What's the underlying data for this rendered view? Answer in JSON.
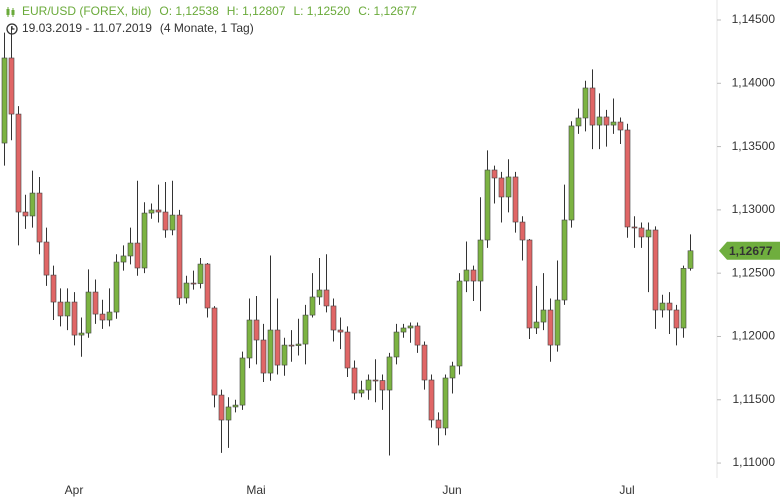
{
  "chart_data": {
    "type": "candlestick",
    "title": "EUR/USD (FOREX, bid)",
    "ohlc_labels": [
      "O: 1,12538",
      "H: 1,12807",
      "L: 1,12520",
      "C: 1,12677"
    ],
    "subtitle": "19.03.2019 - 11.07.2019",
    "period": "(4 Monate, 1 Tag)",
    "price_tag": "1,12677",
    "up_color": "#7cb342",
    "down_color": "#e06666",
    "tag_color": "#6fae3e",
    "categories": [
      null,
      null,
      null,
      null,
      null,
      null,
      null,
      null,
      null,
      null,
      "Apr",
      null,
      null,
      null,
      null,
      null,
      null,
      null,
      null,
      null,
      null,
      null,
      null,
      null,
      null,
      null,
      null,
      null,
      null,
      null,
      null,
      null,
      null,
      null,
      null,
      null,
      "Mai",
      null,
      null,
      null,
      null,
      null,
      null,
      null,
      null,
      null,
      null,
      null,
      null,
      null,
      null,
      null,
      null,
      null,
      null,
      null,
      null,
      null,
      null,
      null,
      null,
      null,
      null,
      null,
      "Jun",
      null,
      null,
      null,
      null,
      null,
      null,
      null,
      null,
      null,
      null,
      null,
      null,
      null,
      null,
      null,
      null,
      null,
      null,
      null,
      null,
      null,
      null,
      null,
      null,
      "Jul",
      null,
      null,
      null,
      null,
      null,
      null,
      null,
      null,
      null
    ],
    "open": [
      1.13528,
      1.142,
      1.13757,
      1.12983,
      1.12952,
      1.13133,
      1.12746,
      1.12485,
      1.12272,
      1.12162,
      1.12272,
      1.12011,
      1.12027,
      1.12351,
      1.12177,
      1.1213,
      1.12193,
      1.12588,
      1.12636,
      1.12738,
      1.12541,
      1.12975,
      1.12999,
      1.12983,
      1.12841,
      1.12959,
      1.12304,
      1.12422,
      1.12418,
      1.12572,
      1.12225,
      1.11537,
      1.1134,
      1.11443,
      1.11458,
      1.1183,
      1.1213,
      1.11972,
      1.11711,
      1.12051,
      1.11774,
      1.11932,
      1.11928,
      1.1194,
      1.12169,
      1.12312,
      1.12367,
      1.12241,
      1.12051,
      1.12035,
      1.11751,
      1.11553,
      1.11577,
      1.11656,
      1.11652,
      1.11577,
      1.11838,
      1.12035,
      1.12067,
      1.12083,
      1.11932,
      1.11656,
      1.1134,
      1.11277,
      1.11672,
      1.11767,
      1.12438,
      1.12525,
      1.12438,
      1.12762,
      1.13315,
      1.13252,
      1.13102,
      1.1326,
      1.12904,
      1.12762,
      1.12067,
      1.12114,
      1.12209,
      1.11932,
      1.12288,
      1.1292,
      1.13663,
      1.13726,
      1.13963,
      1.1367,
      1.13734,
      1.1367,
      1.13694,
      1.13631,
      1.12865,
      1.12857,
      1.12786,
      1.12841,
      1.12209,
      1.12264,
      1.12209,
      1.12067,
      1.12538
    ],
    "high": [
      1.144,
      1.1445,
      1.1382,
      1.1312,
      1.1331,
      1.1326,
      1.1286,
      1.1256,
      1.1238,
      1.1238,
      1.1235,
      1.1215,
      1.1253,
      1.1245,
      1.1229,
      1.1238,
      1.1265,
      1.1272,
      1.1286,
      1.1323,
      1.1306,
      1.1305,
      1.132,
      1.1322,
      1.1323,
      1.13,
      1.1248,
      1.1252,
      1.1262,
      1.1258,
      1.1224,
      1.1158,
      1.1152,
      1.115,
      1.1188,
      1.123,
      1.1232,
      1.121,
      1.1264,
      1.123,
      1.1199,
      1.1205,
      1.1214,
      1.1225,
      1.125,
      1.1262,
      1.1265,
      1.123,
      1.1215,
      1.1208,
      1.1181,
      1.1165,
      1.117,
      1.1182,
      1.117,
      1.1187,
      1.121,
      1.121,
      1.1211,
      1.1211,
      1.1196,
      1.117,
      1.114,
      1.117,
      1.118,
      1.125,
      1.1275,
      1.1256,
      1.131,
      1.1347,
      1.1335,
      1.133,
      1.134,
      1.133,
      1.1295,
      1.1277,
      1.124,
      1.125,
      1.123,
      1.126,
      1.132,
      1.137,
      1.138,
      1.1402,
      1.1411,
      1.1392,
      1.1379,
      1.1388,
      1.1373,
      1.1368,
      1.1295,
      1.129,
      1.129,
      1.1287,
      1.1233,
      1.1235,
      1.1225,
      1.1256,
      1.12807
    ],
    "low": [
      1.1335,
      1.1355,
      1.1272,
      1.1285,
      1.1286,
      1.1265,
      1.124,
      1.1213,
      1.1208,
      1.1205,
      1.1193,
      1.1184,
      1.1199,
      1.121,
      1.1206,
      1.1208,
      1.1214,
      1.1252,
      1.1257,
      1.1248,
      1.125,
      1.1293,
      1.129,
      1.1278,
      1.128,
      1.1225,
      1.1226,
      1.1237,
      1.1238,
      1.1215,
      1.1144,
      1.1108,
      1.1112,
      1.114,
      1.1142,
      1.1175,
      1.1178,
      1.1164,
      1.1165,
      1.117,
      1.1169,
      1.118,
      1.1185,
      1.1178,
      1.1215,
      1.1225,
      1.1219,
      1.1196,
      1.119,
      1.1168,
      1.115,
      1.1152,
      1.115,
      1.1148,
      1.1142,
      1.1106,
      1.1178,
      1.1199,
      1.1195,
      1.1187,
      1.1158,
      1.1128,
      1.1114,
      1.1122,
      1.1155,
      1.117,
      1.1235,
      1.1228,
      1.122,
      1.127,
      1.1305,
      1.129,
      1.1298,
      1.1282,
      1.126,
      1.1198,
      1.1202,
      1.1205,
      1.118,
      1.1188,
      1.1225,
      1.1286,
      1.136,
      1.1362,
      1.1348,
      1.1348,
      1.135,
      1.136,
      1.1352,
      1.1278,
      1.127,
      1.127,
      1.1235,
      1.1206,
      1.1215,
      1.1202,
      1.1193,
      1.1199,
      1.1252
    ],
    "close": [
      1.142,
      1.13757,
      1.12983,
      1.12952,
      1.13133,
      1.12746,
      1.12485,
      1.12272,
      1.12162,
      1.12272,
      1.12011,
      1.12027,
      1.12351,
      1.12177,
      1.1213,
      1.12193,
      1.12588,
      1.12636,
      1.12738,
      1.12541,
      1.12975,
      1.12999,
      1.12983,
      1.12841,
      1.12959,
      1.12304,
      1.12422,
      1.12418,
      1.12572,
      1.12225,
      1.11537,
      1.1134,
      1.11443,
      1.11458,
      1.1183,
      1.1213,
      1.11972,
      1.11711,
      1.12051,
      1.11774,
      1.11932,
      1.11928,
      1.1194,
      1.12169,
      1.12312,
      1.12367,
      1.12241,
      1.12051,
      1.12035,
      1.11751,
      1.11553,
      1.11577,
      1.11656,
      1.11652,
      1.11577,
      1.11838,
      1.12035,
      1.12067,
      1.12083,
      1.11932,
      1.11656,
      1.1134,
      1.11277,
      1.11672,
      1.11767,
      1.12438,
      1.12525,
      1.12438,
      1.12762,
      1.13315,
      1.13252,
      1.13102,
      1.1326,
      1.12904,
      1.12762,
      1.12067,
      1.12114,
      1.12209,
      1.11932,
      1.12288,
      1.1292,
      1.13663,
      1.13726,
      1.13963,
      1.1367,
      1.13734,
      1.1367,
      1.13694,
      1.13631,
      1.12865,
      1.12857,
      1.12786,
      1.12841,
      1.12209,
      1.12264,
      1.12209,
      1.12067,
      1.12538,
      1.12677
    ],
    "ylim": [
      1.10882,
      1.14658
    ],
    "yticks": [
      {
        "value": 1.11,
        "label": "1,11000"
      },
      {
        "value": 1.115,
        "label": "1,11500"
      },
      {
        "value": 1.12,
        "label": "1,12000"
      },
      {
        "value": 1.125,
        "label": "1,12500"
      },
      {
        "value": 1.13,
        "label": "1,13000"
      },
      {
        "value": 1.135,
        "label": "1,13500"
      },
      {
        "value": 1.14,
        "label": "1,14000"
      },
      {
        "value": 1.145,
        "label": "1,14500"
      }
    ]
  }
}
